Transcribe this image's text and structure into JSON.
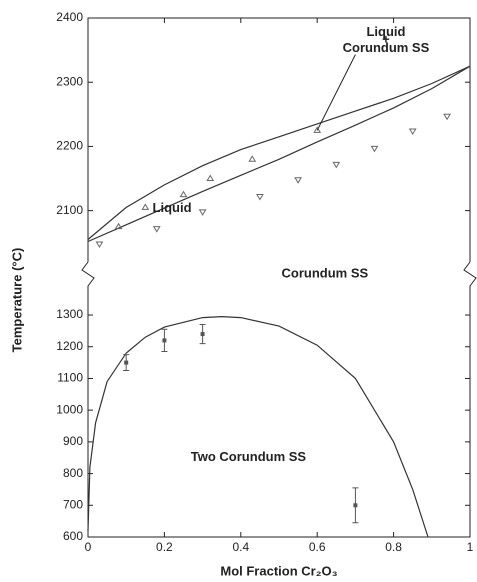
{
  "chart_data": [
    {
      "type": "line",
      "ylabel": "Temperature (°C)",
      "xlim": [
        0,
        1
      ],
      "ylim": [
        2020,
        2400
      ],
      "yticks": [
        2100,
        2200,
        2300,
        2400
      ],
      "annotations": [
        "Liquid",
        "Liquid",
        "+",
        "Corundum SS",
        "Corundum SS"
      ],
      "series": [
        {
          "style": "line",
          "color": "#333333",
          "x": [
            0,
            0.1,
            0.2,
            0.3,
            0.4,
            0.5,
            0.6,
            0.7,
            0.8,
            0.9,
            1
          ],
          "values": [
            2055,
            2105,
            2140,
            2170,
            2195,
            2215,
            2235,
            2255,
            2275,
            2298,
            2325
          ]
        },
        {
          "style": "line",
          "color": "#333333",
          "x": [
            0,
            0.1,
            0.2,
            0.3,
            0.4,
            0.5,
            0.6,
            0.7,
            0.8,
            0.9,
            1
          ],
          "values": [
            2052,
            2078,
            2104,
            2130,
            2155,
            2180,
            2207,
            2233,
            2260,
            2290,
            2325
          ]
        },
        {
          "style": "marker",
          "marker": "up",
          "color": "#666666",
          "x": [
            0.08,
            0.15,
            0.25,
            0.32,
            0.43,
            0.6
          ],
          "values": [
            2075,
            2105,
            2125,
            2150,
            2180,
            2225
          ]
        },
        {
          "style": "marker",
          "marker": "down",
          "color": "#666666",
          "x": [
            0.03,
            0.18,
            0.3,
            0.45,
            0.55,
            0.65,
            0.75,
            0.85,
            0.94
          ],
          "values": [
            2048,
            2072,
            2098,
            2122,
            2148,
            2172,
            2197,
            2224,
            2247
          ]
        }
      ]
    },
    {
      "type": "line",
      "xlabel": "Mol Fraction Cr₂O₃",
      "xlim": [
        0,
        1
      ],
      "xticks": [
        0,
        0.2,
        0.4,
        0.6,
        0.8,
        1
      ],
      "ylim": [
        600,
        1360
      ],
      "yticks": [
        600,
        700,
        800,
        900,
        1000,
        1100,
        1200,
        1300
      ],
      "annotations": [
        "Two Corundum SS"
      ],
      "series": [
        {
          "style": "line",
          "color": "#333333",
          "x": [
            0,
            0.005,
            0.02,
            0.05,
            0.1,
            0.15,
            0.2,
            0.3,
            0.35,
            0.4,
            0.5,
            0.6,
            0.7,
            0.8,
            0.85,
            0.89
          ],
          "values": [
            620,
            820,
            960,
            1090,
            1180,
            1230,
            1262,
            1292,
            1295,
            1292,
            1265,
            1205,
            1100,
            900,
            750,
            600
          ]
        },
        {
          "style": "errorbar",
          "color": "#555555",
          "x": [
            0.1,
            0.2,
            0.3,
            0.7
          ],
          "values": [
            1150,
            1220,
            1240,
            700
          ],
          "errors": [
            25,
            35,
            30,
            55
          ]
        }
      ]
    }
  ]
}
